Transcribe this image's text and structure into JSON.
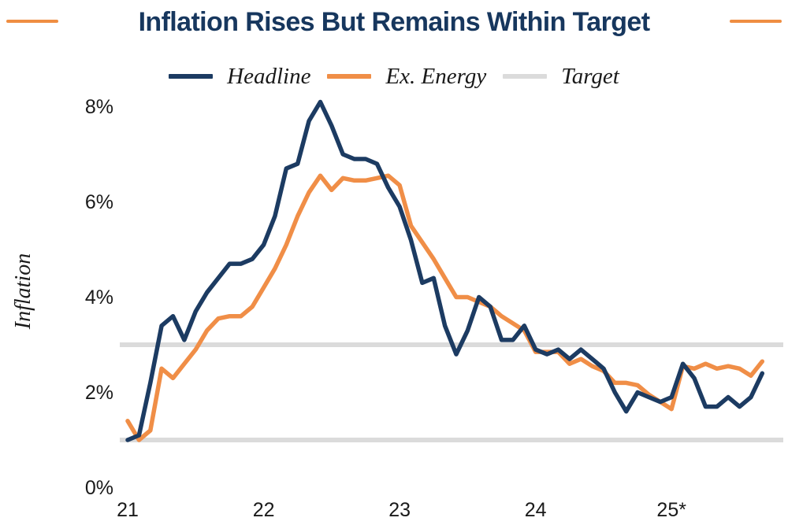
{
  "header": {
    "title": "Inflation Rises But Remains Within Target"
  },
  "legend": [
    {
      "label": "Headline",
      "color": "#1C3B62"
    },
    {
      "label": "Ex. Energy",
      "color": "#F08E47"
    },
    {
      "label": "Target",
      "color": "#DBDBDB"
    }
  ],
  "chart_data": {
    "type": "line",
    "title": "Inflation Rises But Remains Within Target",
    "ylabel": "Inflation",
    "x_tick_labels": [
      "21",
      "22",
      "23",
      "24",
      "25*"
    ],
    "x_tick_months": [
      0,
      12,
      24,
      36,
      48
    ],
    "y_tick_labels": [
      "8%",
      "6%",
      "4%",
      "2%",
      "0%"
    ],
    "y_tick_values": [
      8,
      6,
      4,
      2,
      0
    ],
    "ylim": [
      0,
      8.5
    ],
    "grid": "off",
    "legend_position": "top",
    "x_frequency": "monthly",
    "target_band": {
      "name": "Target",
      "values": [
        3,
        1
      ],
      "color": "#DBDBDB"
    },
    "series": [
      {
        "name": "Headline",
        "color": "#1C3B62",
        "data_name": "headline-series-line",
        "values": [
          1.0,
          1.1,
          2.2,
          3.4,
          3.6,
          3.1,
          3.7,
          4.1,
          4.4,
          4.7,
          4.7,
          4.8,
          5.1,
          5.7,
          6.7,
          6.8,
          7.7,
          8.1,
          7.6,
          7.0,
          6.9,
          6.9,
          6.8,
          6.3,
          5.9,
          5.2,
          4.3,
          4.4,
          3.4,
          2.8,
          3.3,
          4.0,
          3.8,
          3.1,
          3.1,
          3.4,
          2.9,
          2.8,
          2.9,
          2.7,
          2.9,
          2.7,
          2.5,
          2.0,
          1.6,
          2.0,
          1.9,
          1.8,
          1.9,
          2.6,
          2.3,
          1.7,
          1.7,
          1.9,
          1.7,
          1.9,
          2.4
        ]
      },
      {
        "name": "Ex. Energy",
        "color": "#F08E47",
        "data_name": "ex-energy-series-line",
        "values": [
          1.4,
          1.0,
          1.2,
          2.5,
          2.3,
          2.6,
          2.9,
          3.3,
          3.55,
          3.6,
          3.6,
          3.8,
          4.2,
          4.6,
          5.1,
          5.7,
          6.2,
          6.55,
          6.25,
          6.5,
          6.45,
          6.45,
          6.5,
          6.55,
          6.35,
          5.5,
          5.15,
          4.8,
          4.4,
          4.0,
          4.0,
          3.9,
          3.8,
          3.6,
          3.45,
          3.3,
          2.85,
          2.85,
          2.85,
          2.6,
          2.7,
          2.55,
          2.45,
          2.2,
          2.2,
          2.15,
          1.95,
          1.8,
          1.65,
          2.55,
          2.5,
          2.6,
          2.5,
          2.55,
          2.5,
          2.35,
          2.65
        ]
      }
    ]
  }
}
